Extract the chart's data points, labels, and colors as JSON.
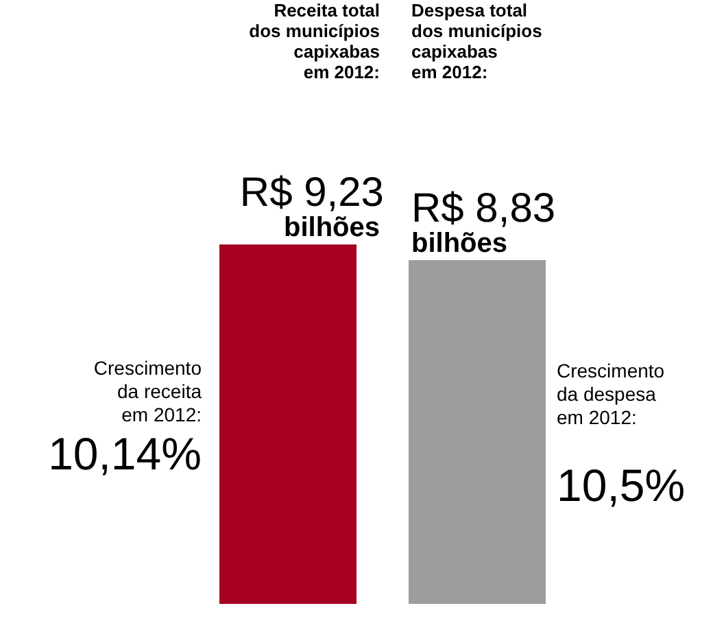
{
  "chart_data": {
    "type": "bar",
    "categories": [
      null,
      null
    ],
    "values": [
      9.23,
      8.83
    ],
    "colors": [
      "#a50021",
      "#9e9e9e"
    ],
    "value_labels": [
      "R$ 9,23\nbilhões",
      "R$ 8,83\nbilhões"
    ],
    "annotations": [
      "Receita total\ndos municípios\ncapixabas\nem 2012:",
      "Crescimento\nda receita\nem 2012:",
      "10,14%",
      "Despesa total\ndos municípios\ncapixabas\nem 2012:",
      "Crescimento\nda despesa\nem 2012:",
      "10,5%"
    ]
  }
}
